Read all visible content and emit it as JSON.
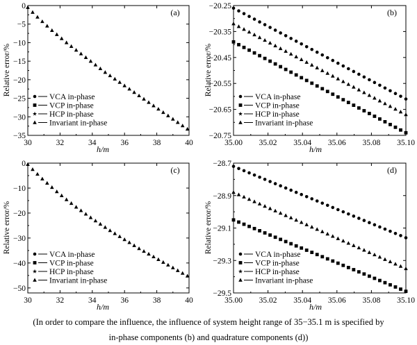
{
  "caption": {
    "line1": "(In order to compare the influence, the influence of system height range of 35−35.1 m is specified by",
    "line2": "in-phase components (b) and quadrature components (d))"
  },
  "legend_symbols": {
    "VCA in-phase": "circle",
    "VCP in-phase": "square",
    "HCP in-phase": "star",
    "Invariant in-phase": "triangle"
  },
  "chart_data": [
    {
      "type": "scatter",
      "panel": "(a)",
      "xlabel": "h/m",
      "ylabel": "Relative error/%",
      "xlim": [
        30,
        40
      ],
      "ylim": [
        -35,
        0
      ],
      "xticks": [
        "30",
        "32",
        "34",
        "36",
        "38",
        "40"
      ],
      "yticks": [
        "0",
        "−5",
        "−10",
        "−15",
        "−20",
        "−25",
        "−30",
        "−35"
      ],
      "legend": [
        "VCA in-phase",
        "VCP in-phase",
        "HCP in-phase",
        "Invariant in-phase"
      ],
      "legend_position": "bottom-left",
      "series": [
        {
          "name": "Invariant in-phase",
          "x": [
            30.0,
            30.3,
            30.6,
            30.9,
            31.2,
            31.5,
            31.8,
            32.1,
            32.4,
            32.7,
            33.0,
            33.3,
            33.6,
            33.9,
            34.2,
            34.5,
            34.8,
            35.1,
            35.4,
            35.7,
            36.0,
            36.3,
            36.6,
            36.9,
            37.2,
            37.5,
            37.8,
            38.1,
            38.4,
            38.7,
            39.0,
            39.3,
            39.6,
            39.9
          ],
          "y": [
            -0.5,
            -1.8,
            -3.1,
            -4.3,
            -5.5,
            -6.7,
            -7.8,
            -8.9,
            -10.0,
            -11.0,
            -12.0,
            -13.0,
            -14.0,
            -15.0,
            -16.0,
            -17.0,
            -18.0,
            -18.9,
            -19.8,
            -20.7,
            -21.6,
            -22.5,
            -23.4,
            -24.3,
            -25.2,
            -26.1,
            -27.0,
            -27.9,
            -28.8,
            -29.7,
            -30.6,
            -31.5,
            -32.4,
            -33.3
          ]
        }
      ]
    },
    {
      "type": "scatter",
      "panel": "(b)",
      "xlabel": "h/m",
      "ylabel": "Relative error/%",
      "xlim": [
        35.0,
        35.1
      ],
      "ylim": [
        -20.75,
        -20.25
      ],
      "xticks": [
        "35.00",
        "35.02",
        "35.04",
        "35.06",
        "35.08",
        "35.10"
      ],
      "yticks": [
        "−20.25",
        "−20.35",
        "−20.45",
        "−20.55",
        "−20.65",
        "−20.75"
      ],
      "legend": [
        "VCA in-phase",
        "VCP in-phase",
        "HCP in-phase",
        "Invariant in-phase"
      ],
      "legend_position": "bottom-left",
      "series": [
        {
          "name": "VCA in-phase",
          "x_start": 35.0,
          "x_end": 35.1,
          "y_start": -20.26,
          "y_end": -20.61,
          "points": 34
        },
        {
          "name": "VCP in-phase",
          "x_start": 35.0,
          "x_end": 35.1,
          "y_start": -20.39,
          "y_end": -20.74,
          "points": 34
        },
        {
          "name": "Invariant in-phase",
          "x_start": 35.0,
          "x_end": 35.1,
          "y_start": -20.32,
          "y_end": -20.67,
          "points": 34
        }
      ]
    },
    {
      "type": "scatter",
      "panel": "(c)",
      "xlabel": "h/m",
      "ylabel": "Relative error/%",
      "xlim": [
        30,
        40
      ],
      "ylim": [
        -52,
        0
      ],
      "xticks": [
        "30",
        "32",
        "34",
        "36",
        "38",
        "40"
      ],
      "yticks": [
        "0",
        "−10",
        "−20",
        "−30",
        "−40",
        "−50"
      ],
      "legend": [
        "VCA in-phase",
        "VCP in-phase",
        "HCP in-phase",
        "Invariant in-phase"
      ],
      "legend_position": "bottom-left",
      "series": [
        {
          "name": "Invariant in-phase",
          "x": [
            30.0,
            30.3,
            30.6,
            30.9,
            31.2,
            31.5,
            31.8,
            32.1,
            32.4,
            32.7,
            33.0,
            33.3,
            33.6,
            33.9,
            34.2,
            34.5,
            34.8,
            35.1,
            35.4,
            35.7,
            36.0,
            36.3,
            36.6,
            36.9,
            37.2,
            37.5,
            37.8,
            38.1,
            38.4,
            38.7,
            39.0,
            39.3,
            39.6,
            39.9
          ],
          "y": [
            -0.5,
            -2.5,
            -4.4,
            -6.3,
            -8.0,
            -9.7,
            -11.4,
            -13.0,
            -14.6,
            -16.1,
            -17.6,
            -19.0,
            -20.4,
            -21.8,
            -23.1,
            -24.4,
            -25.7,
            -27.0,
            -28.2,
            -29.4,
            -30.6,
            -31.8,
            -33.0,
            -34.2,
            -35.3,
            -36.4,
            -37.5,
            -38.6,
            -39.7,
            -40.8,
            -41.9,
            -43.0,
            -44.1,
            -45.2
          ]
        }
      ]
    },
    {
      "type": "scatter",
      "panel": "(d)",
      "xlabel": "h/m",
      "ylabel": "Relative error/%",
      "xlim": [
        35.0,
        35.1
      ],
      "ylim": [
        -29.5,
        -28.7
      ],
      "xticks": [
        "35.00",
        "35.02",
        "35.04",
        "35.06",
        "35.08",
        "35.10"
      ],
      "yticks": [
        "−28.7",
        "−28.9",
        "−29.1",
        "−29.3",
        "−29.5"
      ],
      "legend": [
        "VCA in-phase",
        "VCP in-phase",
        "HCP in-phase",
        "Invariant in-phase"
      ],
      "legend_position": "bottom-left",
      "series": [
        {
          "name": "VCA in-phase",
          "x_start": 35.0,
          "x_end": 35.1,
          "y_start": -28.72,
          "y_end": -29.16,
          "points": 34
        },
        {
          "name": "VCP in-phase",
          "x_start": 35.0,
          "x_end": 35.1,
          "y_start": -29.05,
          "y_end": -29.49,
          "points": 34
        },
        {
          "name": "Invariant in-phase",
          "x_start": 35.0,
          "x_end": 35.1,
          "y_start": -28.88,
          "y_end": -29.35,
          "points": 34
        }
      ]
    }
  ]
}
